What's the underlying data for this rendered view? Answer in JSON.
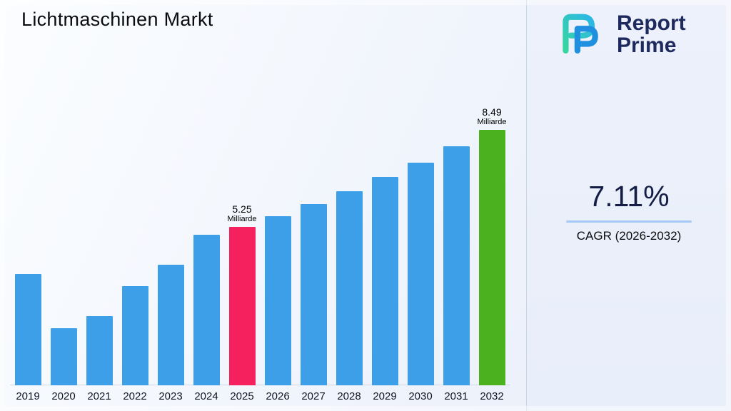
{
  "title": "Lichtmaschinen Markt",
  "brand": {
    "name_line1": "Report",
    "name_line2": "Prime"
  },
  "stats": {
    "cagr_value": "7.11%",
    "cagr_label": "CAGR (2026-2032)"
  },
  "colors": {
    "bar_blue": "#3d9fe8",
    "bar_pink": "#f5205e",
    "bar_green": "#4cb11e",
    "navy": "#1e2a5e",
    "underline": "#a6c8f4"
  },
  "chart_data": {
    "type": "bar",
    "title": "Lichtmaschinen Markt",
    "unit": "Milliarde",
    "categories": [
      "2019",
      "2020",
      "2021",
      "2022",
      "2023",
      "2024",
      "2025",
      "2026",
      "2027",
      "2028",
      "2029",
      "2030",
      "2031",
      "2032"
    ],
    "values": [
      3.7,
      1.9,
      2.3,
      3.3,
      4.0,
      5.0,
      5.25,
      5.62,
      6.02,
      6.45,
      6.91,
      7.4,
      7.93,
      8.49
    ],
    "ylim": [
      0,
      9
    ],
    "grid": false,
    "legend": false,
    "bar_color_default": "#3d9fe8",
    "bar_color_highlights": {
      "2025": "#f5205e",
      "2032": "#4cb11e"
    },
    "annotations": [
      {
        "category": "2025",
        "value_label": "5.25",
        "unit_label": "Milliarde"
      },
      {
        "category": "2032",
        "value_label": "8.49",
        "unit_label": "Milliarde"
      }
    ]
  }
}
